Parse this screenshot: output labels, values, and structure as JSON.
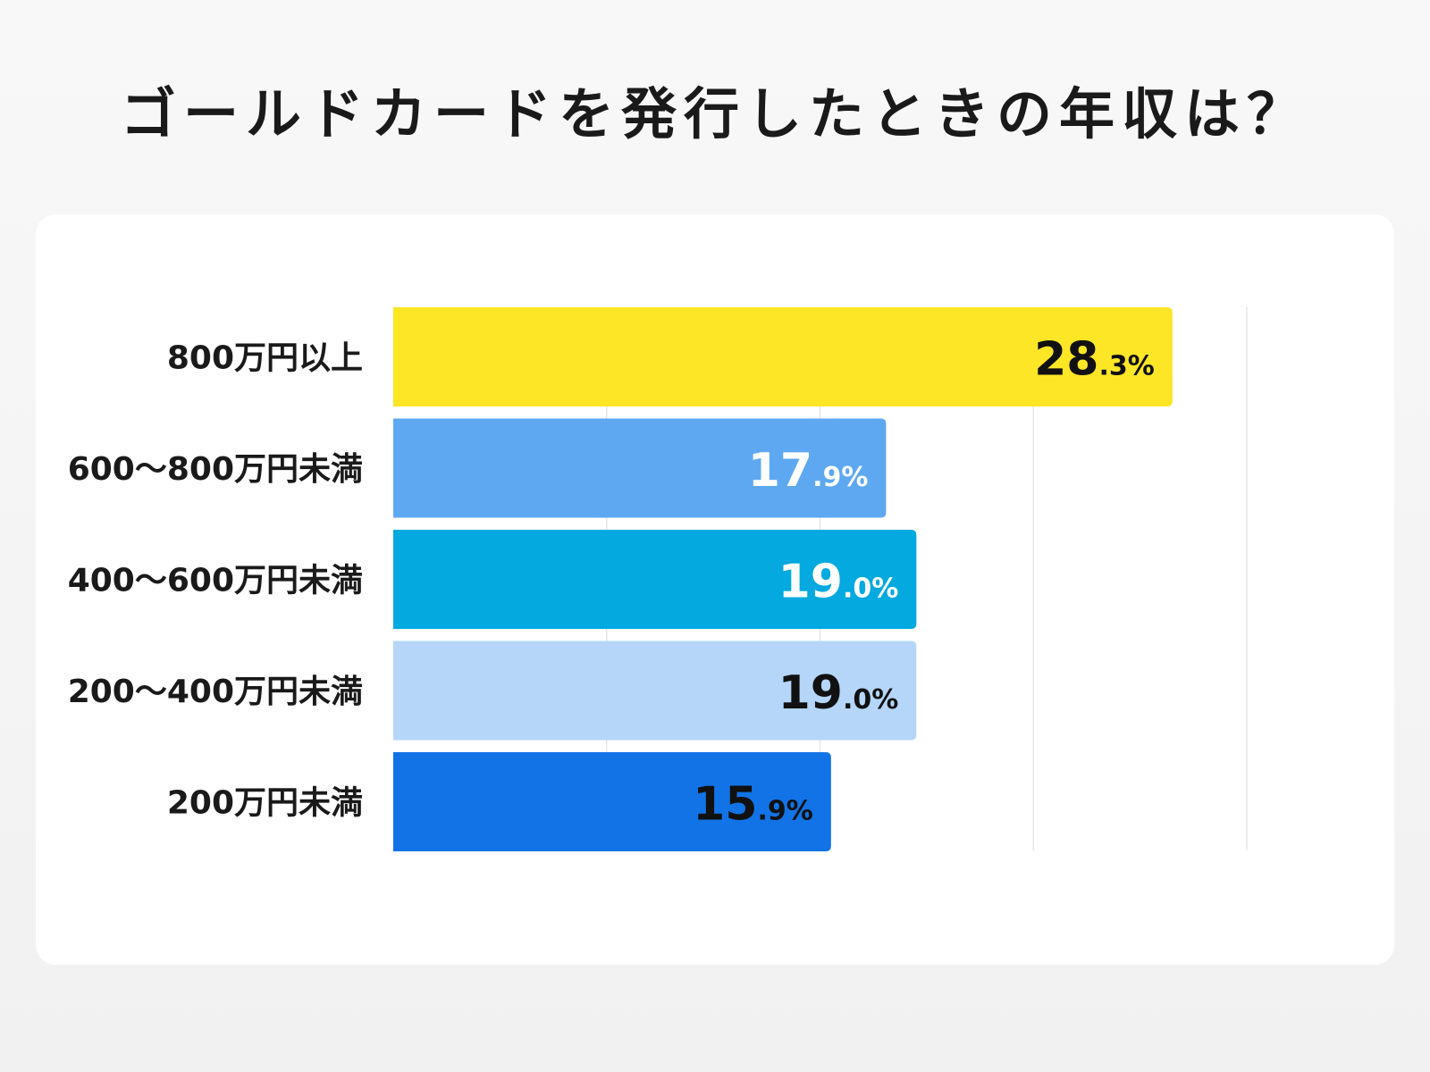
{
  "title": "ゴールドカードを発行したときの年収は？",
  "chart_data": {
    "type": "bar",
    "orientation": "horizontal",
    "categories": [
      "800万円以上",
      "600〜800万円未満",
      "400〜600万円未満",
      "200〜400万円未満",
      "200万円未満"
    ],
    "values": [
      28.3,
      17.9,
      19.0,
      19.0,
      15.9
    ],
    "value_labels": [
      {
        "main": "28",
        "small": ".3%"
      },
      {
        "main": "17",
        "small": ".9%"
      },
      {
        "main": "19",
        "small": ".0%"
      },
      {
        "main": "19",
        "small": ".0%"
      },
      {
        "main": "15",
        "small": ".9%"
      }
    ],
    "colors": [
      "#fde625",
      "#5ea8f2",
      "#03a9df",
      "#b5d6f8",
      "#1273e6"
    ],
    "label_colors": [
      "#111111",
      "#ffffff",
      "#ffffff",
      "#111111",
      "#111111"
    ],
    "xlim": [
      0,
      31
    ],
    "grid_lines": [
      7.75,
      15.5,
      23.25,
      31
    ],
    "grid": true,
    "legend": "none"
  }
}
